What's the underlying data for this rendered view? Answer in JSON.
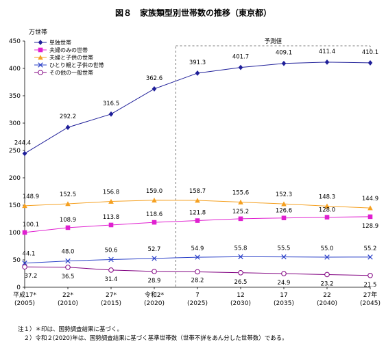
{
  "title": "図８　家族類型別世帯数の推移（東京都）",
  "chart_data": {
    "type": "line",
    "ylabel": "万世帯",
    "ylim": [
      0,
      450
    ],
    "yticks": [
      0,
      50,
      100,
      150,
      200,
      250,
      300,
      350,
      400,
      450
    ],
    "categories": [
      {
        "line1": "平成17*",
        "line2": "(2005)"
      },
      {
        "line1": "22*",
        "line2": "(2010)"
      },
      {
        "line1": "27*",
        "line2": "(2015)"
      },
      {
        "line1": "令和2*",
        "line2": "(2020)"
      },
      {
        "line1": "7",
        "line2": "(2025)"
      },
      {
        "line1": "12",
        "line2": "(2030)"
      },
      {
        "line1": "17",
        "line2": "(2035)"
      },
      {
        "line1": "22",
        "line2": "(2040)"
      },
      {
        "line1": "27年",
        "line2": "(2045)"
      }
    ],
    "forecast_label": "予測値",
    "forecast_start_index": 4,
    "grid": false,
    "legend_position": "top-left",
    "series": [
      {
        "name": "単独世帯",
        "color": "#1f1f99",
        "marker": "diamond",
        "values": [
          244.4,
          292.2,
          316.5,
          362.6,
          391.3,
          401.7,
          409.1,
          411.4,
          410.1
        ],
        "labels": [
          "244.4",
          "292.2",
          "316.5",
          "362.6",
          "391.3",
          "401.7",
          "409.1",
          "411.4",
          "410.1"
        ]
      },
      {
        "name": "夫婦のみの世帯",
        "color": "#e020d0",
        "marker": "square",
        "values": [
          100.1,
          108.9,
          113.8,
          118.6,
          121.8,
          125.2,
          126.6,
          128.0,
          128.9
        ],
        "labels": [
          "100.1",
          "108.9",
          "113.8",
          "118.6",
          "121.8",
          "125.2",
          "126.6",
          "128.0",
          "128.9"
        ]
      },
      {
        "name": "夫婦と子供の世帯",
        "color": "#f5a020",
        "marker": "triangle",
        "values": [
          148.9,
          152.5,
          156.8,
          159.0,
          158.7,
          155.6,
          152.3,
          148.3,
          144.9
        ],
        "labels": [
          "148.9",
          "152.5",
          "156.8",
          "159.0",
          "158.7",
          "155.6",
          "152.3",
          "148.3",
          "144.9"
        ]
      },
      {
        "name": "ひとり親と子供の世帯",
        "color": "#2a40c8",
        "marker": "x",
        "values": [
          44.1,
          48.0,
          50.6,
          52.7,
          54.9,
          55.8,
          55.5,
          55.0,
          55.2
        ],
        "labels": [
          "44.1",
          "48.0",
          "50.6",
          "52.7",
          "54.9",
          "55.8",
          "55.5",
          "55.0",
          "55.2"
        ]
      },
      {
        "name": "その他の一般世帯",
        "color": "#800080",
        "marker": "circle",
        "values": [
          37.2,
          36.5,
          31.4,
          28.9,
          28.2,
          26.5,
          24.9,
          23.2,
          21.5
        ],
        "labels": [
          "37.2",
          "36.5",
          "31.4",
          "28.9",
          "28.2",
          "26.5",
          "24.9",
          "23.2",
          "21.5"
        ]
      }
    ]
  },
  "notes": [
    "注１）＊印は、国勢調査結果に基づく。",
    "　２）令和２(2020)年は、国勢調査結果に基づく基準世帯数（世帯不詳をあん分した世帯数）である。"
  ]
}
